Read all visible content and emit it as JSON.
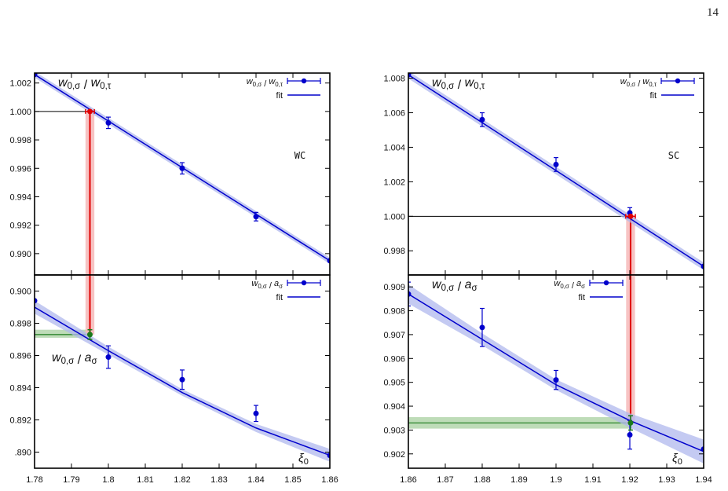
{
  "page_number": "14",
  "colors": {
    "data": "#0000cc",
    "band_fit": "#b0b8ee",
    "crossing": "#e00000",
    "crossing_band": "#f6b8b8",
    "result": "#1a7a1a",
    "result_band": "#b7d8b0",
    "reference_line": "#000000"
  },
  "chart_data": [
    {
      "id": "left-top",
      "type": "scatter",
      "ylabel_text": "w0,σ / w0,τ",
      "ylabel_parts": [
        "w",
        "0,σ",
        " / ",
        "w",
        "0,τ"
      ],
      "legend": {
        "data": "w0,σ / w0,τ",
        "data_parts": [
          "w",
          "0,σ",
          " / ",
          "w",
          "0,τ"
        ],
        "fit": "fit"
      },
      "legend_position": "top-right",
      "annotation": "WC",
      "xlim": [
        1.78,
        1.86
      ],
      "ylim": [
        0.9885,
        1.0027
      ],
      "yticks": [
        0.99,
        0.992,
        0.994,
        0.996,
        0.998,
        1.0,
        1.002
      ],
      "ytick_labels": [
        "0.990",
        "0.992",
        "0.994",
        "0.996",
        "0.998",
        "1.000",
        "1.002"
      ],
      "points": [
        {
          "x": 1.78,
          "y": 1.0026,
          "err": 0.0
        },
        {
          "x": 1.8,
          "y": 0.9992,
          "err": 0.0004
        },
        {
          "x": 1.82,
          "y": 0.996,
          "err": 0.0004
        },
        {
          "x": 1.84,
          "y": 0.9926,
          "err": 0.0003
        },
        {
          "x": 1.86,
          "y": 0.9895,
          "err": 0.0
        }
      ],
      "fit_line": {
        "x": [
          1.78,
          1.86
        ],
        "y": [
          1.0026,
          0.9895
        ],
        "band": 0.00022
      },
      "crossing": {
        "x": 1.795,
        "y": 1.0,
        "xerr": 0.0012,
        "band": [
          1.7938,
          1.7962
        ]
      },
      "reference_y": 1.0
    },
    {
      "id": "left-bottom",
      "type": "scatter",
      "ylabel_text": "w0,σ / aσ",
      "ylabel_parts": [
        "w",
        "0,σ",
        " / ",
        "a",
        "σ"
      ],
      "legend": {
        "data": "w0,σ / aσ",
        "data_parts": [
          "w",
          "0,σ",
          " / ",
          "a",
          "σ"
        ],
        "fit": "fit"
      },
      "legend_position": "top-right",
      "xlabel": "ξ0",
      "xlim": [
        1.78,
        1.86
      ],
      "ylim": [
        0.889,
        0.901
      ],
      "xticks": [
        1.78,
        1.79,
        1.8,
        1.81,
        1.82,
        1.83,
        1.84,
        1.85,
        1.86
      ],
      "xtick_labels": [
        "1.78",
        "1.79",
        "1.8",
        "1.81",
        "1.82",
        "1.83",
        "1.84",
        "1.85",
        "1.86"
      ],
      "yticks": [
        0.89,
        0.892,
        0.894,
        0.896,
        0.898,
        0.9
      ],
      "ytick_labels": [
        ".890",
        "0.892",
        "0.894",
        "0.896",
        "0.898",
        "0.900"
      ],
      "points": [
        {
          "x": 1.78,
          "y": 0.8994,
          "err": 0.0
        },
        {
          "x": 1.8,
          "y": 0.8959,
          "err": 0.0007
        },
        {
          "x": 1.82,
          "y": 0.8945,
          "err": 0.0006
        },
        {
          "x": 1.84,
          "y": 0.8924,
          "err": 0.0005
        },
        {
          "x": 1.86,
          "y": 0.8898,
          "err": 0.0
        }
      ],
      "fit_line": {
        "x": [
          1.78,
          1.8,
          1.82,
          1.84,
          1.86
        ],
        "y": [
          0.899,
          0.8963,
          0.8937,
          0.8915,
          0.8898
        ],
        "band": [
          0.0004,
          0.00025,
          0.0002,
          0.00025,
          0.0004
        ]
      },
      "crossing_band_x": [
        1.7938,
        1.7962
      ],
      "result": {
        "x": 1.795,
        "y": 0.8973,
        "err": 0.0003,
        "band": [
          0.8971,
          0.8976
        ]
      }
    },
    {
      "id": "right-top",
      "type": "scatter",
      "ylabel_text": "w0,σ / w0,τ",
      "ylabel_parts": [
        "w",
        "0,σ",
        " / ",
        "w",
        "0,τ"
      ],
      "legend": {
        "data": "w0,σ / w0,τ",
        "data_parts": [
          "w",
          "0,σ",
          " / ",
          "w",
          "0,τ"
        ],
        "fit": "fit"
      },
      "legend_position": "top-right",
      "annotation": "SC",
      "xlim": [
        1.86,
        1.94
      ],
      "ylim": [
        0.9966,
        1.0083
      ],
      "yticks": [
        0.998,
        1.0,
        1.002,
        1.004,
        1.006,
        1.008
      ],
      "ytick_labels": [
        "0.998",
        "1.000",
        "1.002",
        "1.004",
        "1.006",
        "1.008"
      ],
      "points": [
        {
          "x": 1.86,
          "y": 1.0082,
          "err": 0.0
        },
        {
          "x": 1.88,
          "y": 1.0056,
          "err": 0.0004
        },
        {
          "x": 1.9,
          "y": 1.003,
          "err": 0.0004
        },
        {
          "x": 1.92,
          "y": 1.0002,
          "err": 0.0003
        },
        {
          "x": 1.94,
          "y": 0.9971,
          "err": 0.0
        }
      ],
      "fit_line": {
        "x": [
          1.86,
          1.94
        ],
        "y": [
          1.0082,
          0.9971
        ],
        "band": 0.00022
      },
      "crossing": {
        "x": 1.9202,
        "y": 1.0,
        "xerr": 0.0013,
        "band": [
          1.919,
          1.9214
        ]
      },
      "reference_y": 1.0
    },
    {
      "id": "right-bottom",
      "type": "scatter",
      "ylabel_text": "w0,σ / aσ",
      "ylabel_parts": [
        "w",
        "0,σ",
        " / ",
        "a",
        "σ"
      ],
      "legend": {
        "data": "w0,σ / aσ",
        "data_parts": [
          "w",
          "0,σ",
          " / ",
          "a",
          "σ"
        ],
        "fit": "fit"
      },
      "legend_position": "top-center",
      "xlabel": "ξ0",
      "xlim": [
        1.86,
        1.94
      ],
      "ylim": [
        0.9014,
        0.9095
      ],
      "xticks": [
        1.86,
        1.87,
        1.88,
        1.89,
        1.9,
        1.91,
        1.92,
        1.93,
        1.94
      ],
      "xtick_labels": [
        "1.86",
        "1.87",
        "1.88",
        "1.89",
        "1.9",
        "1.91",
        "1.92",
        "1.93",
        "1.94"
      ],
      "yticks": [
        0.902,
        0.903,
        0.904,
        0.905,
        0.906,
        0.907,
        0.908,
        0.909
      ],
      "ytick_labels": [
        "0.902",
        "0.903",
        "0.904",
        "0.905",
        "0.906",
        "0.907",
        "0.908",
        "0.909"
      ],
      "points": [
        {
          "x": 1.86,
          "y": 0.9087,
          "err": 0.0005
        },
        {
          "x": 1.88,
          "y": 0.9073,
          "err": 0.0008
        },
        {
          "x": 1.9,
          "y": 0.9051,
          "err": 0.0004
        },
        {
          "x": 1.92,
          "y": 0.9028,
          "err": 0.0006
        },
        {
          "x": 1.94,
          "y": 0.9022,
          "err": 0.0
        }
      ],
      "fit_line": {
        "x": [
          1.86,
          1.88,
          1.9,
          1.92,
          1.94
        ],
        "y": [
          0.9087,
          0.9068,
          0.9049,
          0.9034,
          0.9021
        ],
        "band": [
          0.0004,
          0.00025,
          0.00022,
          0.0003,
          0.0005
        ]
      },
      "crossing_band_x": [
        1.919,
        1.9214
      ],
      "result": {
        "x": 1.9202,
        "y": 0.9033,
        "err": 0.0003,
        "band": [
          0.90306,
          0.90354
        ]
      }
    }
  ]
}
